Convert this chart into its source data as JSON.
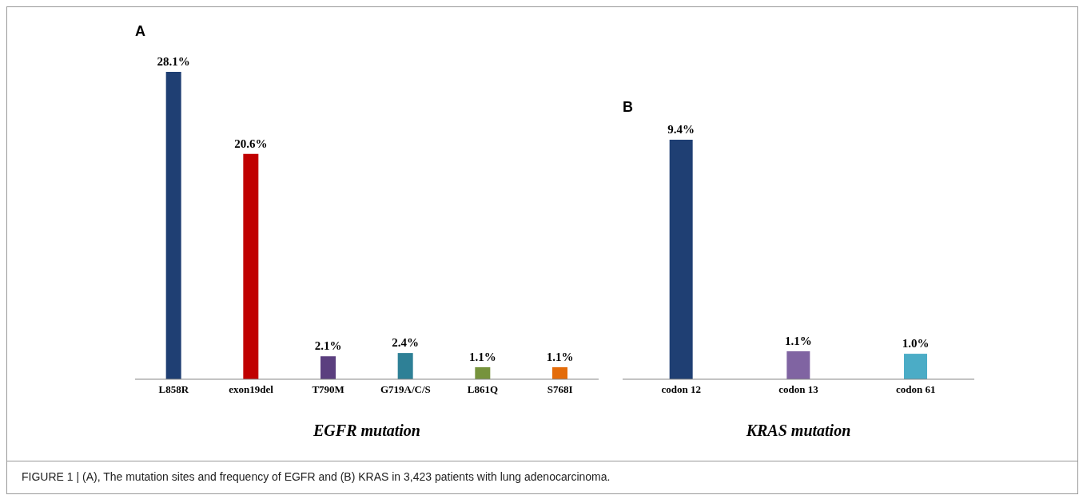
{
  "chart_data": [
    {
      "type": "bar",
      "title": "A",
      "xlabel": "EGFR mutation",
      "categories": [
        "L858R",
        "exon19del",
        "T790M",
        "G719A/C/S",
        "L861Q",
        "S768I"
      ],
      "values": [
        28.1,
        20.6,
        2.1,
        2.4,
        1.1,
        1.1
      ],
      "colors": [
        "#1f3f73",
        "#c00000",
        "#5b3f7f",
        "#2e8096",
        "#76933c",
        "#e46c0a"
      ],
      "value_labels": [
        "28.1%",
        "20.6%",
        "2.1%",
        "2.4%",
        "1.1%",
        "1.1%"
      ],
      "grid": false,
      "legend": false,
      "annotations": [
        "FIGURE 1 | (A), The mutation sites and frequency of EGFR and (B) KRAS in 3,423 patients with lung adenocarcinoma."
      ]
    },
    {
      "type": "bar",
      "title": "B",
      "xlabel": "KRAS mutation",
      "categories": [
        "codon 12",
        "codon 13",
        "codon 61"
      ],
      "values": [
        9.4,
        1.1,
        1.0
      ],
      "colors": [
        "#1f3f73",
        "#8064a2",
        "#4bacc6"
      ],
      "value_labels": [
        "9.4%",
        "1.1%",
        "1.0%"
      ],
      "grid": false,
      "legend": false
    }
  ]
}
